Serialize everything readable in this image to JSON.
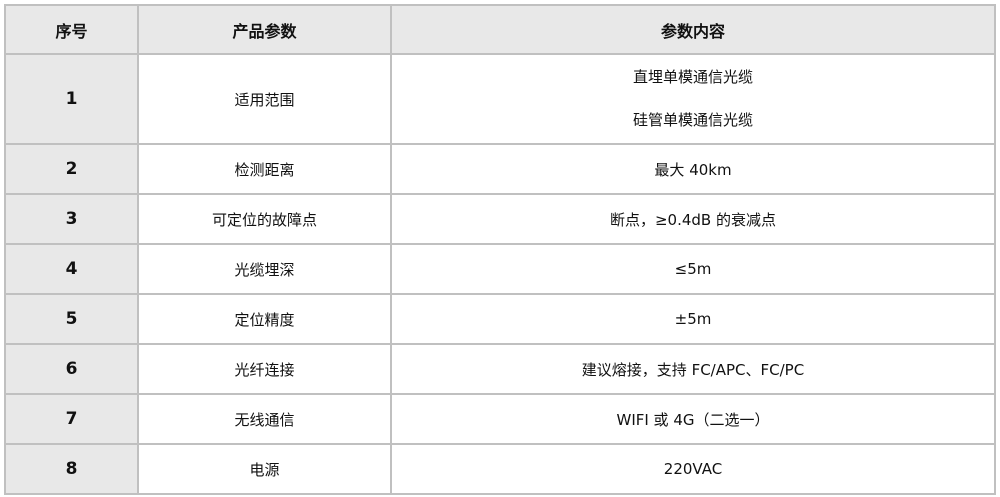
{
  "headers": [
    "序号",
    "产品参数",
    "参数内容"
  ],
  "rows": [
    {
      "num": "1",
      "param": "适用范围",
      "values": [
        "直埋单模通信光缆",
        "硅管单模通信光缆"
      ]
    },
    {
      "num": "2",
      "param": "检测距离",
      "values": [
        "最大 40km"
      ]
    },
    {
      "num": "3",
      "param": "可定位的故障点",
      "values": [
        "断点，≥0.4dB 的衰减点"
      ]
    },
    {
      "num": "4",
      "param": "光缆埋深",
      "values": [
        "≤5m"
      ]
    },
    {
      "num": "5",
      "param": "定位精度",
      "values": [
        "±5m"
      ]
    },
    {
      "num": "6",
      "param": "光纤连接",
      "values": [
        "建议熔接，支持 FC/APC、FC/PC"
      ]
    },
    {
      "num": "7",
      "param": "无线通信",
      "values": [
        "WIFI 或 4G（二选一）"
      ]
    },
    {
      "num": "8",
      "param": "电源",
      "values": [
        "220VAC"
      ]
    }
  ]
}
